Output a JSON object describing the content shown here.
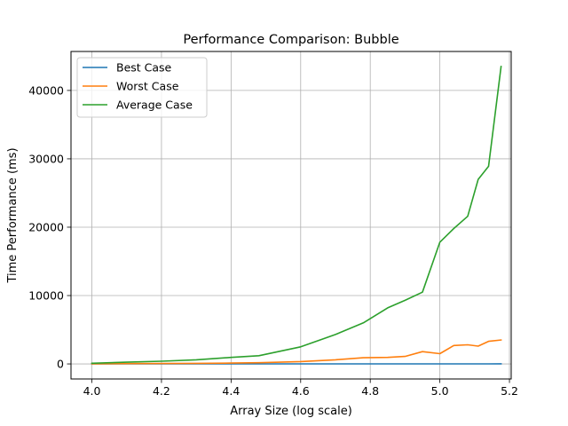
{
  "chart_data": {
    "type": "line",
    "title": "Performance Comparison: Bubble",
    "xlabel": "Array Size (log scale)",
    "ylabel": "Time Performance (ms)",
    "xlim": [
      3.94,
      5.205
    ],
    "ylim": [
      -2200,
      45700
    ],
    "grid": true,
    "legend": "top-left",
    "xticks": [
      4.0,
      4.2,
      4.4,
      4.6,
      4.8,
      5.0,
      5.2
    ],
    "xtick_labels": [
      "4.0",
      "4.2",
      "4.4",
      "4.6",
      "4.8",
      "5.0",
      "5.2"
    ],
    "yticks": [
      0,
      10000,
      20000,
      30000,
      40000
    ],
    "ytick_labels": [
      "0",
      "10000",
      "20000",
      "30000",
      "40000"
    ],
    "x": [
      4.0,
      4.1,
      4.2,
      4.3,
      4.4,
      4.48,
      4.6,
      4.7,
      4.78,
      4.85,
      4.9,
      4.95,
      5.0,
      5.04,
      5.08,
      5.11,
      5.14,
      5.176
    ],
    "series": [
      {
        "name": "Best Case",
        "color": "#1f77b4",
        "values": [
          2,
          3,
          3,
          4,
          5,
          6,
          7,
          8,
          9,
          10,
          10,
          11,
          11,
          12,
          12,
          13,
          13,
          14
        ]
      },
      {
        "name": "Worst Case",
        "color": "#ff7f0e",
        "values": [
          20,
          40,
          60,
          90,
          130,
          180,
          350,
          600,
          900,
          950,
          1100,
          1800,
          1500,
          2700,
          2800,
          2600,
          3300,
          3500
        ]
      },
      {
        "name": "Average Case",
        "color": "#2ca02c",
        "values": [
          100,
          250,
          400,
          600,
          950,
          1200,
          2500,
          4300,
          6000,
          8200,
          9300,
          10500,
          17800,
          19800,
          21600,
          27000,
          28900,
          43500
        ]
      }
    ]
  }
}
